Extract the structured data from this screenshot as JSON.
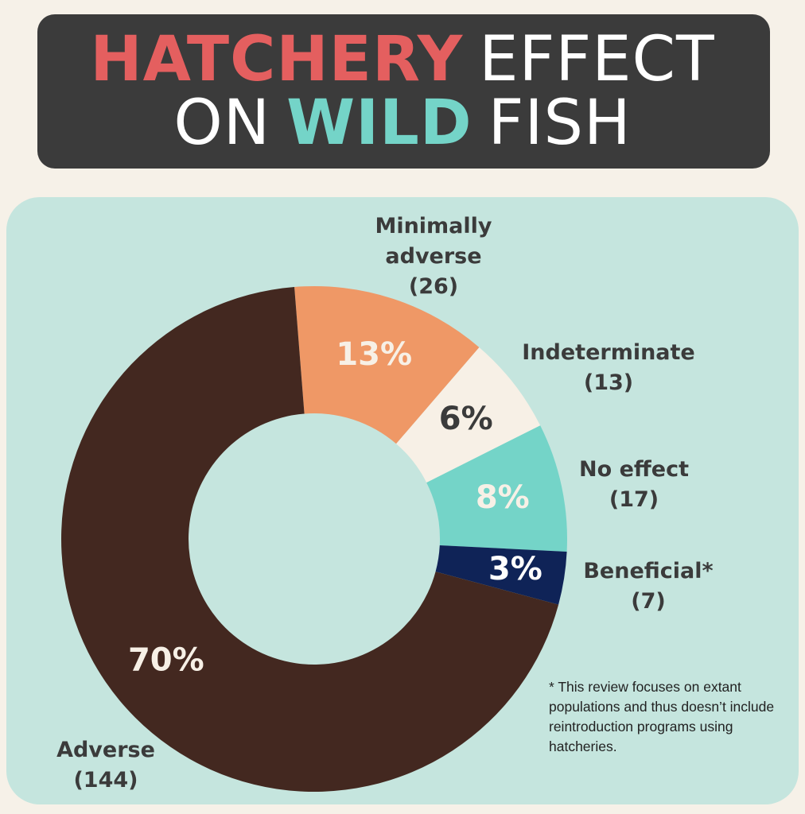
{
  "chart_data": {
    "type": "donut",
    "title": [
      [
        {
          "text": "HATCHERY",
          "color": "#e45f5f",
          "bold": true
        },
        {
          "text": "EFFECT",
          "color": "#ffffff",
          "bold": false
        }
      ],
      [
        {
          "text": "ON",
          "color": "#ffffff",
          "bold": false
        },
        {
          "text": "WILD",
          "color": "#74d4c8",
          "bold": true
        },
        {
          "text": "FISH",
          "color": "#ffffff",
          "bold": false
        }
      ]
    ],
    "categories": [
      "Minimally adverse",
      "Indeterminate",
      "No effect",
      "Beneficial*",
      "Adverse"
    ],
    "values": [
      26,
      13,
      17,
      7,
      144
    ],
    "value_labels": [
      "(26)",
      "(13)",
      "(17)",
      "(7)",
      "(144)"
    ],
    "percent_labels": [
      "13%",
      "6%",
      "8%",
      "3%",
      "70%"
    ],
    "colors": [
      "#ef9866",
      "#f7f0e6",
      "#74d4c8",
      "#0f2357",
      "#432820"
    ],
    "percent_label_colors": [
      "#f7f0e6",
      "#3b3b3b",
      "#f7f0e6",
      "#ffffff",
      "#f7f0e6"
    ],
    "footnote": "* This review focuses on extant populations and thus doesn’t include reintroduction programs using hatcheries."
  }
}
